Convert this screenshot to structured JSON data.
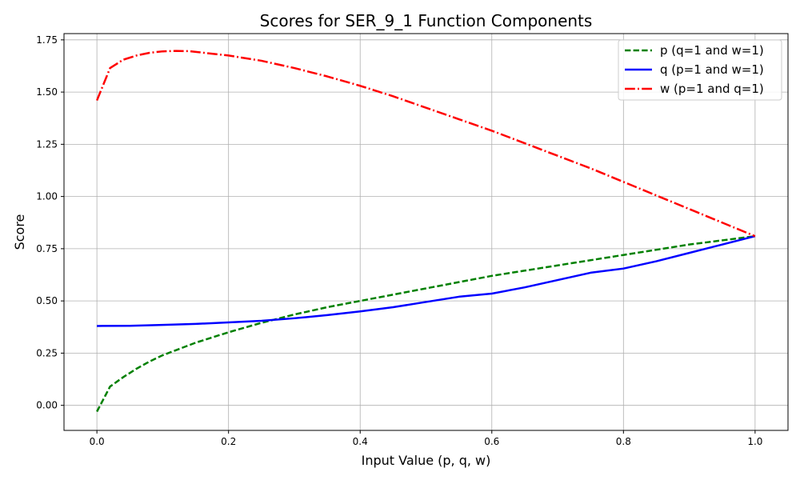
{
  "chart_data": {
    "type": "line",
    "title": "Scores for SER_9_1 Function Components",
    "xlabel": "Input Value (p, q, w)",
    "ylabel": "Score",
    "xlim": [
      -0.05,
      1.05
    ],
    "ylim": [
      -0.12,
      1.78
    ],
    "xticks": [
      0.0,
      0.2,
      0.4,
      0.6,
      0.8,
      1.0
    ],
    "xtick_labels": [
      "0.0",
      "0.2",
      "0.4",
      "0.6",
      "0.8",
      "1.0"
    ],
    "yticks": [
      0.0,
      0.25,
      0.5,
      0.75,
      1.0,
      1.25,
      1.5,
      1.75
    ],
    "ytick_labels": [
      "0.00",
      "0.25",
      "0.50",
      "0.75",
      "1.00",
      "1.25",
      "1.50",
      "1.75"
    ],
    "grid": true,
    "legend_position": "top-right",
    "series": [
      {
        "name": "p (q=1 and w=1)",
        "color": "#008000",
        "dash": "dashed",
        "x": [
          0.0,
          0.02,
          0.04,
          0.06,
          0.08,
          0.1,
          0.15,
          0.2,
          0.25,
          0.3,
          0.35,
          0.4,
          0.45,
          0.5,
          0.55,
          0.6,
          0.65,
          0.7,
          0.75,
          0.8,
          0.85,
          0.9,
          0.95,
          1.0
        ],
        "y": [
          -0.03,
          0.09,
          0.135,
          0.175,
          0.21,
          0.24,
          0.3,
          0.35,
          0.395,
          0.435,
          0.47,
          0.5,
          0.53,
          0.56,
          0.59,
          0.62,
          0.645,
          0.67,
          0.695,
          0.72,
          0.745,
          0.77,
          0.79,
          0.81
        ]
      },
      {
        "name": "q (p=1 and w=1)",
        "color": "#0000ff",
        "dash": "solid",
        "x": [
          0.0,
          0.05,
          0.1,
          0.15,
          0.2,
          0.25,
          0.3,
          0.35,
          0.4,
          0.45,
          0.5,
          0.55,
          0.6,
          0.65,
          0.7,
          0.75,
          0.8,
          0.85,
          0.9,
          0.95,
          1.0
        ],
        "y": [
          0.38,
          0.381,
          0.385,
          0.39,
          0.397,
          0.405,
          0.417,
          0.432,
          0.45,
          0.47,
          0.495,
          0.52,
          0.535,
          0.565,
          0.6,
          0.635,
          0.655,
          0.69,
          0.73,
          0.77,
          0.81
        ]
      },
      {
        "name": "w (p=1 and q=1)",
        "color": "#ff0000",
        "dash": "dashdot",
        "x": [
          0.0,
          0.02,
          0.04,
          0.06,
          0.08,
          0.1,
          0.12,
          0.14,
          0.2,
          0.25,
          0.3,
          0.35,
          0.4,
          0.45,
          0.5,
          0.55,
          0.6,
          0.65,
          0.7,
          0.75,
          0.8,
          0.85,
          0.9,
          0.95,
          1.0
        ],
        "y": [
          1.46,
          1.615,
          1.655,
          1.675,
          1.688,
          1.695,
          1.697,
          1.696,
          1.675,
          1.65,
          1.615,
          1.575,
          1.53,
          1.48,
          1.425,
          1.37,
          1.315,
          1.255,
          1.195,
          1.135,
          1.07,
          1.005,
          0.94,
          0.875,
          0.81
        ]
      }
    ]
  }
}
